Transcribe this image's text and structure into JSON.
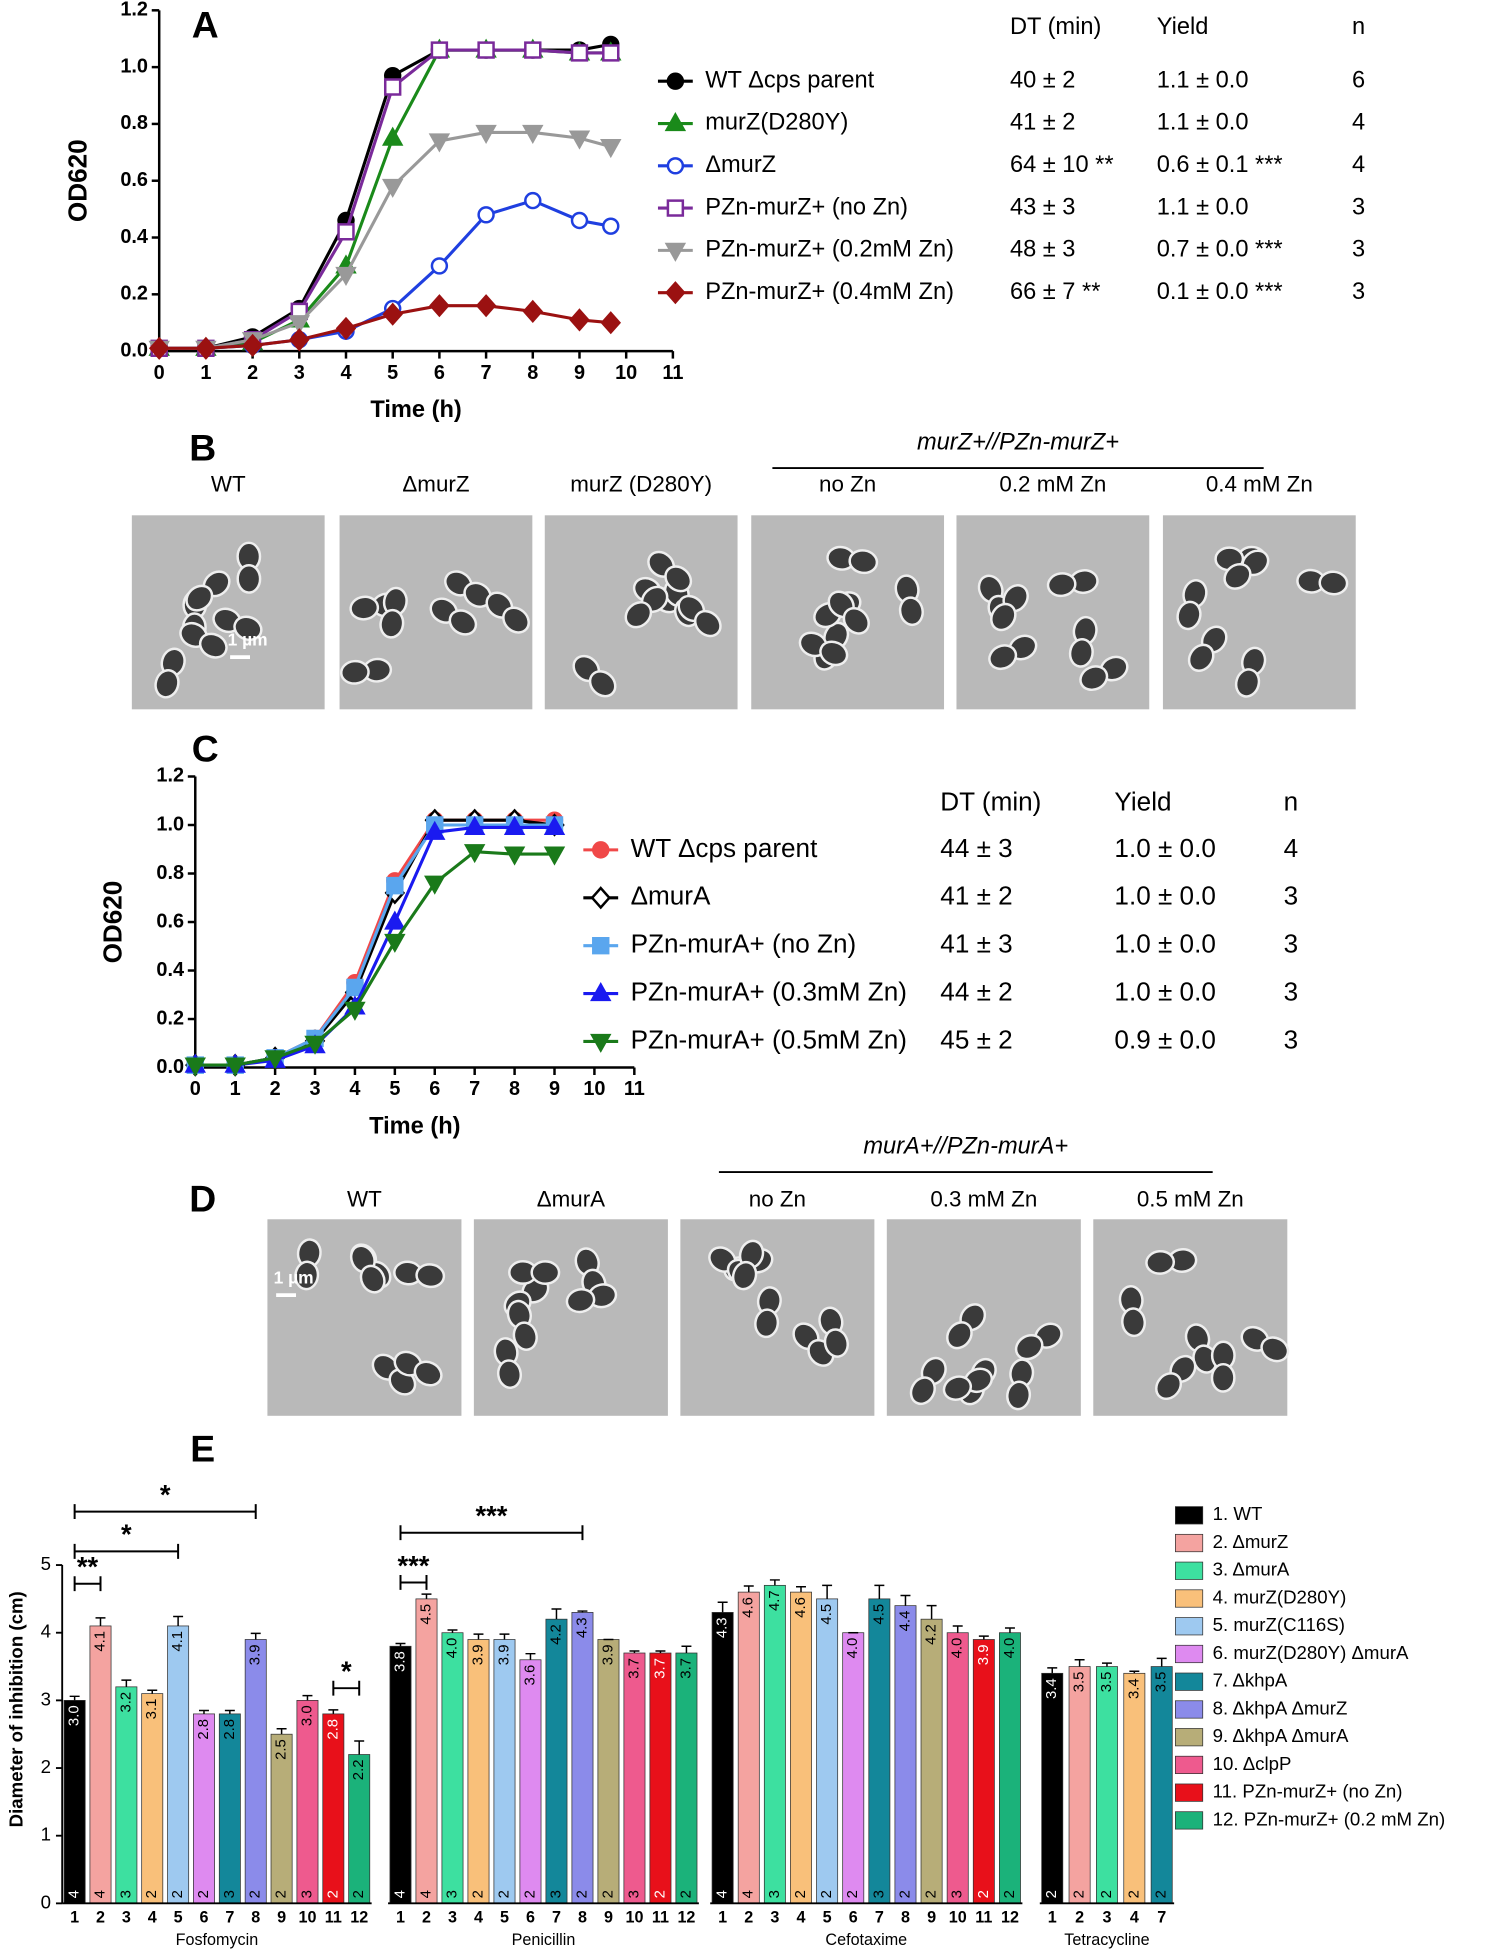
{
  "chart_data": [
    {
      "type": "line",
      "panel": "A",
      "xlabel": "Time (h)",
      "ylabel": "OD620",
      "x": [
        0,
        1,
        2,
        3,
        4,
        5,
        6,
        7,
        8,
        9,
        9.67
      ],
      "xlim": [
        0,
        11
      ],
      "xticks": [
        0,
        1,
        2,
        3,
        4,
        5,
        6,
        7,
        8,
        9,
        10,
        11
      ],
      "ylim": [
        0,
        1.2
      ],
      "yticks": [
        {
          "value": 0,
          "label": "0.0"
        },
        0.2,
        0.4,
        0.6,
        0.8,
        {
          "value": 1,
          "label": "1.0"
        },
        1.2
      ],
      "series": [
        {
          "name": "WT Δcps parent",
          "color": "#000000",
          "marker": "circle",
          "values": [
            0.01,
            0.01,
            0.05,
            0.15,
            0.46,
            0.97,
            1.06,
            1.06,
            1.06,
            1.06,
            1.08
          ]
        },
        {
          "name": "murZ(D280Y)",
          "color": "#1a8a1a",
          "marker": "triangle",
          "values": [
            0.01,
            0.01,
            0.03,
            0.11,
            0.3,
            0.75,
            1.06,
            1.06,
            1.06,
            1.05,
            1.05
          ]
        },
        {
          "name": "ΔmurZ",
          "color": "#1f3fe0",
          "marker": "open-circle",
          "values": [
            0.01,
            0.01,
            0.02,
            0.04,
            0.07,
            0.15,
            0.3,
            0.48,
            0.53,
            0.46,
            0.44
          ]
        },
        {
          "name": "PZn-murZ+ (no Zn)",
          "color": "#7a2a9a",
          "marker": "open-square",
          "values": [
            0.01,
            0.01,
            0.04,
            0.14,
            0.42,
            0.93,
            1.06,
            1.06,
            1.06,
            1.05,
            1.05
          ]
        },
        {
          "name": "PZn-murZ+ (0.2mM Zn)",
          "color": "#999999",
          "marker": "triangle-down",
          "values": [
            0.01,
            0.01,
            0.04,
            0.1,
            0.27,
            0.58,
            0.74,
            0.77,
            0.77,
            0.75,
            0.72
          ]
        },
        {
          "name": "PZn-murZ+ (0.4mM Zn)",
          "color": "#9b1111",
          "marker": "diamond",
          "values": [
            0.01,
            0.01,
            0.02,
            0.04,
            0.08,
            0.13,
            0.16,
            0.16,
            0.14,
            0.11,
            0.1
          ]
        }
      ],
      "table": {
        "columns": [
          "DT (min)",
          "Yield",
          "n"
        ],
        "rows": [
          [
            "40 ± 2",
            "1.1 ± 0.0",
            "6"
          ],
          [
            "41 ± 2",
            "1.1 ± 0.0",
            "4"
          ],
          [
            "64 ± 10 **",
            "0.6 ± 0.1 ***",
            "4"
          ],
          [
            "43 ± 3",
            "1.1 ± 0.0",
            "3"
          ],
          [
            "48 ± 3",
            "0.7 ± 0.0 ***",
            "3"
          ],
          [
            "66 ± 7 **",
            "0.1 ± 0.0 ***",
            "3"
          ]
        ]
      }
    },
    {
      "type": "line",
      "panel": "C",
      "xlabel": "Time (h)",
      "ylabel": "OD620",
      "x": [
        0,
        1,
        2,
        3,
        4,
        5,
        6,
        7,
        8,
        9
      ],
      "xlim": [
        0,
        11
      ],
      "xticks": [
        0,
        1,
        2,
        3,
        4,
        5,
        6,
        7,
        8,
        9,
        10,
        11
      ],
      "ylim": [
        0,
        1.2
      ],
      "yticks": [
        {
          "value": 0,
          "label": "0.0"
        },
        0.2,
        0.4,
        0.6,
        0.8,
        {
          "value": 1,
          "label": "1.0"
        },
        1.2
      ],
      "series": [
        {
          "name": "WT Δcps parent",
          "color": "#f04848",
          "marker": "circle",
          "values": [
            0.01,
            0.01,
            0.04,
            0.12,
            0.35,
            0.77,
            1.02,
            1.02,
            1.02,
            1.02
          ]
        },
        {
          "name": "ΔmurA",
          "color": "#000000",
          "marker": "open-diamond",
          "values": [
            0.01,
            0.01,
            0.04,
            0.11,
            0.31,
            0.72,
            1.02,
            1.02,
            1.02,
            1.0
          ]
        },
        {
          "name": "PZn-murA+ (no Zn)",
          "color": "#5aa6ee",
          "marker": "square",
          "values": [
            0.01,
            0.01,
            0.04,
            0.12,
            0.33,
            0.75,
            1.0,
            1.0,
            1.0,
            1.0
          ]
        },
        {
          "name": "PZn-murA+ (0.3mM Zn)",
          "color": "#1a1af0",
          "marker": "triangle",
          "values": [
            0.01,
            0.01,
            0.03,
            0.09,
            0.25,
            0.6,
            0.97,
            0.99,
            0.99,
            0.99
          ]
        },
        {
          "name": "PZn-murA+ (0.5mM Zn)",
          "color": "#1a7a1a",
          "marker": "triangle-down",
          "values": [
            0.01,
            0.01,
            0.04,
            0.1,
            0.24,
            0.52,
            0.76,
            0.89,
            0.88,
            0.88
          ]
        }
      ],
      "table": {
        "columns": [
          "DT (min)",
          "Yield",
          "n"
        ],
        "rows": [
          [
            "44 ± 3",
            "1.0 ± 0.0",
            "4"
          ],
          [
            "41 ± 2",
            "1.0 ± 0.0",
            "3"
          ],
          [
            "41 ± 3",
            "1.0 ± 0.0",
            "3"
          ],
          [
            "44 ± 2",
            "1.0 ± 0.0",
            "3"
          ],
          [
            "45 ± 2",
            "0.9 ± 0.0",
            "3"
          ]
        ]
      }
    },
    {
      "type": "bar",
      "panel": "E",
      "ylabel": "Diameter of inhibition (cm)",
      "categories": [
        "Fosfomycin",
        "Penicillin",
        "Cefotaxime",
        "Tetracycline"
      ],
      "ylim": [
        0,
        5
      ],
      "yticks": [
        0,
        1,
        2,
        3,
        4,
        5
      ],
      "annotations": [
        "**",
        "*",
        "*",
        "*",
        "***",
        "***"
      ],
      "series": [
        {
          "name": "1. WT",
          "tick_label": "1",
          "color": "#000000",
          "values": [
            3.0,
            3.8,
            4.3,
            3.4
          ],
          "value_labels": [
            "3.0",
            "3.8",
            "4.3",
            "3.4"
          ],
          "errors": [
            0.06,
            0.04,
            0.15,
            0.08
          ],
          "n": [
            "4",
            "4",
            "4",
            "2"
          ]
        },
        {
          "name": "2. ΔmurZ",
          "tick_label": "2",
          "color": "#f4a3a0",
          "values": [
            4.1,
            4.5,
            4.6,
            3.5
          ],
          "value_labels": [
            "4.1",
            "4.5",
            "4.6",
            "3.5"
          ],
          "errors": [
            0.12,
            0.07,
            0.09,
            0.1
          ],
          "n": [
            "4",
            "4",
            "4",
            "2"
          ]
        },
        {
          "name": "3. ΔmurA",
          "tick_label": "3",
          "color": "#3de0a0",
          "values": [
            3.2,
            4.0,
            4.7,
            3.5
          ],
          "value_labels": [
            "3.2",
            "4.0",
            "4.7",
            "3.5"
          ],
          "errors": [
            0.1,
            0.04,
            0.08,
            0.05
          ],
          "n": [
            "3",
            "3",
            "3",
            "2"
          ]
        },
        {
          "name": "4. murZ(D280Y)",
          "tick_label": "4",
          "color": "#f9c07a",
          "values": [
            3.1,
            3.9,
            4.6,
            3.4
          ],
          "value_labels": [
            "3.1",
            "3.9",
            "4.6",
            "3.4"
          ],
          "errors": [
            0.05,
            0.08,
            0.08,
            0.03
          ],
          "n": [
            "2",
            "2",
            "2",
            "2"
          ]
        },
        {
          "name": "5. murZ(C116S)",
          "tick_label": "5",
          "color": "#9ec9f0",
          "values": [
            4.1,
            3.9,
            4.5,
            null
          ],
          "value_labels": [
            "4.1",
            "3.9",
            "4.5",
            null
          ],
          "errors": [
            0.14,
            0.08,
            0.2,
            null
          ],
          "n": [
            "2",
            "2",
            "2",
            null
          ]
        },
        {
          "name": "6. murZ(D280Y) ΔmurA",
          "tick_label": "6",
          "color": "#de8af0",
          "values": [
            2.8,
            3.6,
            4.0,
            null
          ],
          "value_labels": [
            "2.8",
            "3.6",
            "4.0",
            null
          ],
          "errors": [
            0.05,
            0.09,
            0.0,
            null
          ],
          "n": [
            "2",
            "2",
            "2",
            null
          ]
        },
        {
          "name": "7. ΔkhpA",
          "tick_label": "7",
          "color": "#13879a",
          "values": [
            2.8,
            4.2,
            4.5,
            3.5
          ],
          "value_labels": [
            "2.8",
            "4.2",
            "4.5",
            "3.5"
          ],
          "errors": [
            0.05,
            0.15,
            0.2,
            0.12
          ],
          "n": [
            "3",
            "3",
            "3",
            "2"
          ]
        },
        {
          "name": "8. ΔkhpA ΔmurZ",
          "tick_label": "8",
          "color": "#8b8bea",
          "values": [
            3.9,
            4.3,
            4.4,
            null
          ],
          "value_labels": [
            "3.9",
            "4.3",
            "4.4",
            null
          ],
          "errors": [
            0.09,
            0.02,
            0.15,
            null
          ],
          "n": [
            "2",
            "2",
            "2",
            null
          ]
        },
        {
          "name": "9. ΔkhpA ΔmurA",
          "tick_label": "9",
          "color": "#b7ad78",
          "values": [
            2.5,
            3.9,
            4.2,
            null
          ],
          "value_labels": [
            "2.5",
            "3.9",
            "4.2",
            null
          ],
          "errors": [
            0.08,
            0.0,
            0.2,
            null
          ],
          "n": [
            "2",
            "2",
            "2",
            null
          ]
        },
        {
          "name": "10. ΔclpP",
          "tick_label": "10",
          "color": "#ee5a8e",
          "values": [
            3.0,
            3.7,
            4.0,
            null
          ],
          "value_labels": [
            "3.0",
            "3.7",
            "4.0",
            null
          ],
          "errors": [
            0.07,
            0.03,
            0.1,
            null
          ],
          "n": [
            "3",
            "3",
            "3",
            null
          ]
        },
        {
          "name": "11. PZn-murZ+ (no Zn)",
          "tick_label": "11",
          "color": "#e8101a",
          "values": [
            2.8,
            3.7,
            3.9,
            null
          ],
          "value_labels": [
            "2.8",
            "3.7",
            "3.9",
            null
          ],
          "errors": [
            0.06,
            0.03,
            0.05,
            null
          ],
          "n": [
            "2",
            "2",
            "2",
            null
          ]
        },
        {
          "name": "12. PZn-murZ+ (0.2 mM Zn)",
          "tick_label": "12",
          "color": "#1bb27a",
          "values": [
            2.2,
            3.7,
            4.0,
            null
          ],
          "value_labels": [
            "2.2",
            "3.7",
            "4.0",
            null
          ],
          "errors": [
            0.2,
            0.1,
            0.07,
            null
          ],
          "n": [
            "2",
            "2",
            "2",
            null
          ]
        }
      ]
    }
  ],
  "micrographs": [
    {
      "panel": "B",
      "header": "murZ+//PZn-murZ+",
      "scale_bar": "1 µm",
      "labels": [
        "WT",
        "ΔmurZ",
        "murZ (D280Y)",
        "no Zn",
        "0.2 mM Zn",
        "0.4 mM Zn"
      ]
    },
    {
      "panel": "D",
      "header": "murA+//PZn-murA+",
      "scale_bar": "1 µm",
      "labels": [
        "WT",
        "ΔmurA",
        "no Zn",
        "0.3 mM Zn",
        "0.5 mM Zn"
      ]
    }
  ]
}
